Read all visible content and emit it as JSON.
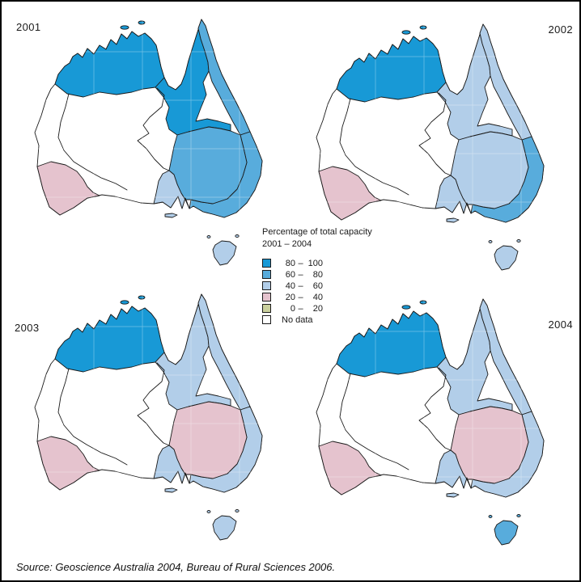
{
  "legend": {
    "title_line1": "Percentage of total capacity",
    "title_line2": "2001 – 2004",
    "items": [
      {
        "from": "80",
        "to": "100",
        "band": "80-100"
      },
      {
        "from": "60",
        "to": "80",
        "band": "60-80"
      },
      {
        "from": "40",
        "to": "60",
        "band": "40-60"
      },
      {
        "from": "20",
        "to": "40",
        "band": "20-40"
      },
      {
        "from": "0",
        "to": "20",
        "band": "0-20"
      },
      {
        "label": "No data",
        "band": "no-data"
      }
    ]
  },
  "source_note": "Source: Geoscience Australia 2004, Bureau of Rural Sciences 2006.",
  "chart_data": {
    "type": "choropleth-map-small-multiples",
    "measure": "Percentage of total capacity",
    "period": "2001 – 2004",
    "geography": "Australia — drainage division regions",
    "legend_position": "center",
    "bands": [
      {
        "band": "80-100",
        "label": "80 – 100",
        "color": "#1899d6"
      },
      {
        "band": "60-80",
        "label": "60 – 80",
        "color": "#58acdc"
      },
      {
        "band": "40-60",
        "label": "40 – 60",
        "color": "#b2cee9"
      },
      {
        "band": "20-40",
        "label": "20 – 40",
        "color": "#e5c3ce"
      },
      {
        "band": "0-20",
        "label": "0 – 20",
        "color": "#cbd19e"
      },
      {
        "band": "no-data",
        "label": "No data",
        "color": "#ffffff"
      }
    ],
    "maps": [
      {
        "year": "2001",
        "regions": {
          "timor_sea_north": "80-100",
          "gulf_carpentaria": "80-100",
          "north_east_coast": "60-80",
          "murray_darling_basin": "60-80",
          "south_east_coast": "60-80",
          "sa_gulf": "40-60",
          "south_west_coast": "20-40",
          "tasmania": "40-60",
          "interior_and_west": "no-data"
        }
      },
      {
        "year": "2002",
        "regions": {
          "timor_sea_north": "80-100",
          "gulf_carpentaria": "40-60",
          "north_east_coast": "40-60",
          "murray_darling_basin": "40-60",
          "south_east_coast": "60-80",
          "sa_gulf": "40-60",
          "south_west_coast": "20-40",
          "tasmania": "40-60",
          "interior_and_west": "no-data"
        }
      },
      {
        "year": "2003",
        "regions": {
          "timor_sea_north": "80-100",
          "gulf_carpentaria": "40-60",
          "north_east_coast": "40-60",
          "murray_darling_basin": "20-40",
          "south_east_coast": "40-60",
          "sa_gulf": "40-60",
          "south_west_coast": "20-40",
          "tasmania": "40-60",
          "interior_and_west": "no-data"
        }
      },
      {
        "year": "2004",
        "regions": {
          "timor_sea_north": "80-100",
          "gulf_carpentaria": "40-60",
          "north_east_coast": "40-60",
          "murray_darling_basin": "20-40",
          "south_east_coast": "40-60",
          "sa_gulf": "40-60",
          "south_west_coast": "20-40",
          "tasmania": "60-80",
          "interior_and_west": "no-data"
        }
      }
    ]
  }
}
